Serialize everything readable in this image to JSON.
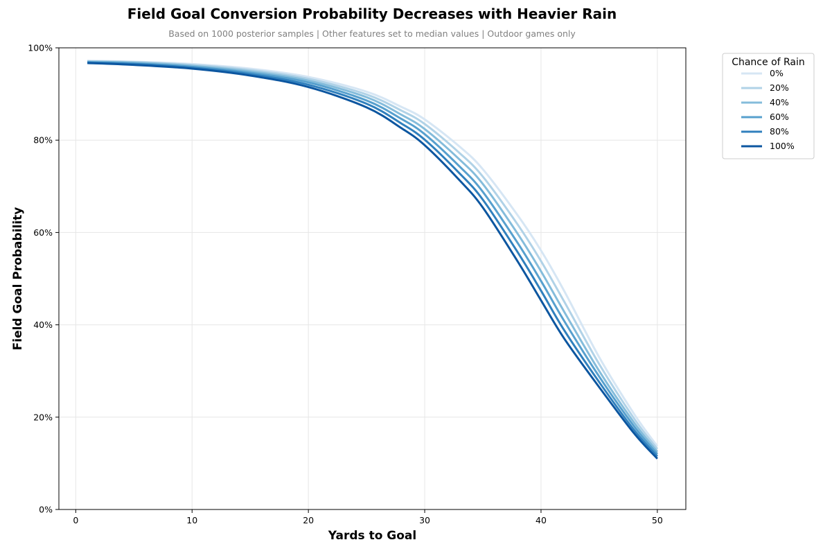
{
  "chart_data": {
    "type": "line",
    "title": "Field Goal Conversion Probability Decreases with Heavier Rain",
    "subtitle": "Based on 1000 posterior samples | Other features set to median values | Outdoor games only",
    "xlabel": "Yards to Goal",
    "ylabel": "Field Goal Probability",
    "xlim": [
      -1.45,
      52.45
    ],
    "ylim": [
      0,
      1
    ],
    "x_ticks": [
      0,
      10,
      20,
      30,
      40,
      50
    ],
    "x_tick_labels": [
      "0",
      "10",
      "20",
      "30",
      "40",
      "50"
    ],
    "y_ticks": [
      0,
      0.2,
      0.4,
      0.6,
      0.8,
      1.0
    ],
    "y_tick_labels": [
      "0%",
      "20%",
      "40%",
      "60%",
      "80%",
      "100%"
    ],
    "grid": true,
    "legend": {
      "title": "Chance of Rain",
      "placement": "outside-top-right"
    },
    "x": [
      1,
      5,
      10,
      15,
      20,
      25,
      28,
      30,
      33,
      35,
      38,
      40,
      42,
      45,
      48,
      50
    ],
    "series": [
      {
        "name": "0%",
        "color": "#d6e6f4",
        "values": [
          0.972,
          0.97,
          0.965,
          0.955,
          0.937,
          0.905,
          0.872,
          0.845,
          0.786,
          0.737,
          0.637,
          0.561,
          0.473,
          0.33,
          0.207,
          0.137
        ]
      },
      {
        "name": "20%",
        "color": "#b0d2e7",
        "values": [
          0.971,
          0.969,
          0.963,
          0.952,
          0.933,
          0.899,
          0.864,
          0.835,
          0.772,
          0.721,
          0.617,
          0.538,
          0.45,
          0.315,
          0.197,
          0.131
        ]
      },
      {
        "name": "40%",
        "color": "#84bcdb",
        "values": [
          0.97,
          0.968,
          0.961,
          0.949,
          0.929,
          0.893,
          0.855,
          0.824,
          0.758,
          0.705,
          0.597,
          0.516,
          0.428,
          0.3,
          0.188,
          0.125
        ]
      },
      {
        "name": "60%",
        "color": "#57a0ce",
        "values": [
          0.969,
          0.966,
          0.959,
          0.946,
          0.925,
          0.886,
          0.846,
          0.813,
          0.743,
          0.688,
          0.577,
          0.495,
          0.408,
          0.288,
          0.18,
          0.12
        ]
      },
      {
        "name": "80%",
        "color": "#3080bd",
        "values": [
          0.968,
          0.965,
          0.957,
          0.943,
          0.92,
          0.879,
          0.836,
          0.801,
          0.728,
          0.671,
          0.557,
          0.474,
          0.388,
          0.276,
          0.172,
          0.115
        ]
      },
      {
        "name": "100%",
        "color": "#0c56a0",
        "values": [
          0.967,
          0.963,
          0.955,
          0.94,
          0.915,
          0.871,
          0.826,
          0.789,
          0.713,
          0.654,
          0.537,
          0.453,
          0.37,
          0.265,
          0.165,
          0.11
        ]
      }
    ]
  }
}
